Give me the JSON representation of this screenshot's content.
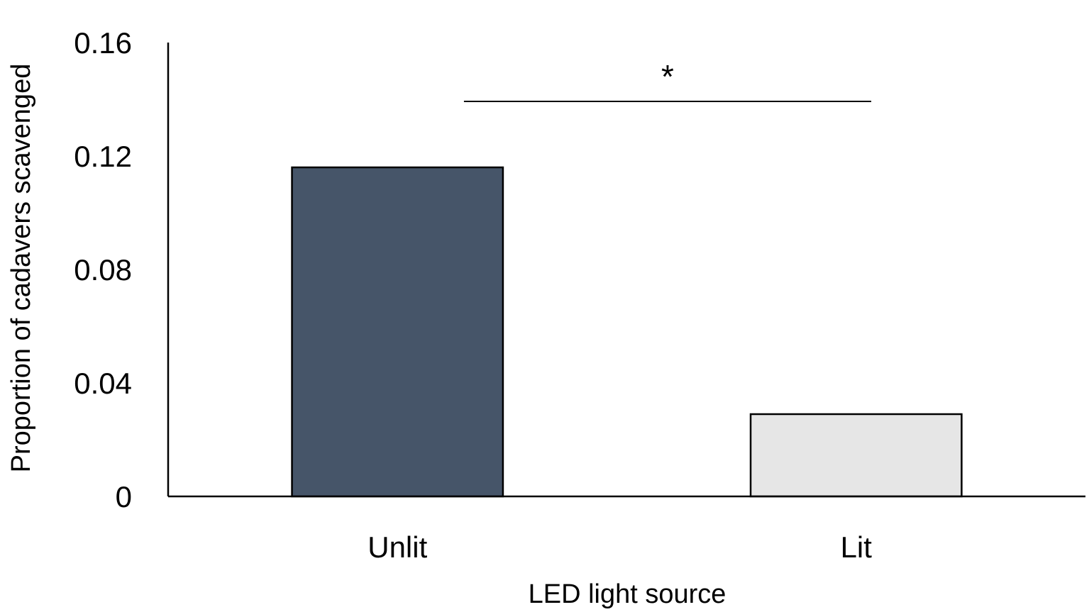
{
  "chart_data": {
    "type": "bar",
    "title": "",
    "xlabel": "LED light source",
    "ylabel": "Proportion of cadavers scavenged",
    "categories": [
      "Unlit",
      "Lit"
    ],
    "values": [
      0.116,
      0.029
    ],
    "colors": [
      "#465569",
      "#e6e6e6"
    ],
    "ylim": [
      0,
      0.16
    ],
    "yticks": [
      0,
      0.04,
      0.08,
      0.12,
      0.16
    ],
    "ytick_labels": [
      "0",
      "0.04",
      "0.08",
      "0.12",
      "0.16"
    ],
    "grid": false,
    "legend": "none",
    "annotations": [
      {
        "type": "significance-bracket",
        "from": "Unlit",
        "to": "Lit",
        "label": "*"
      }
    ]
  }
}
